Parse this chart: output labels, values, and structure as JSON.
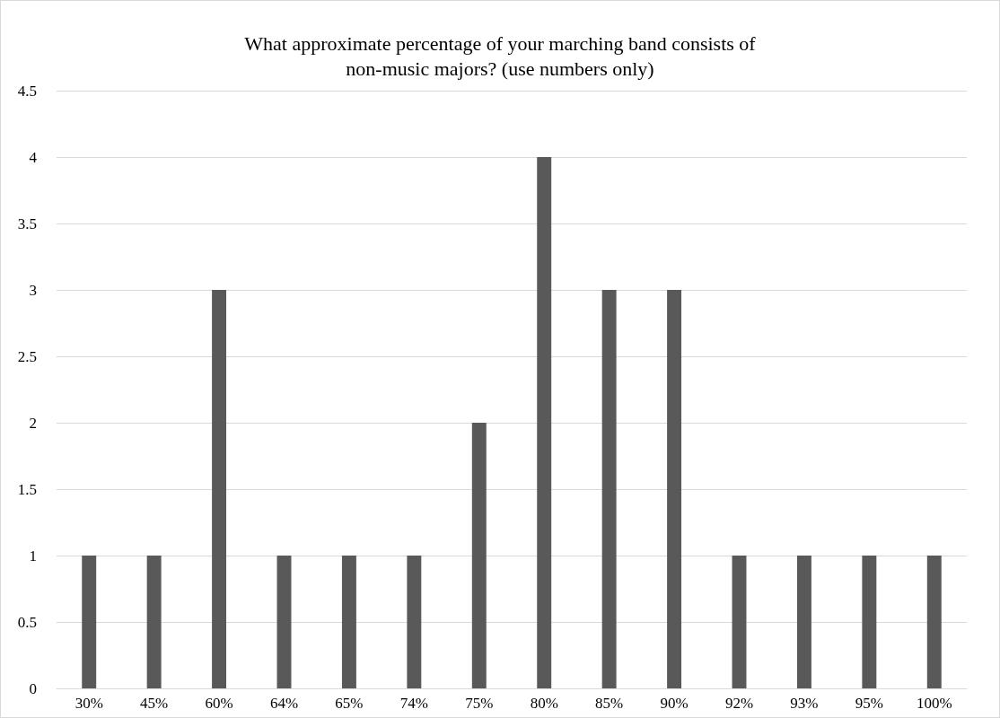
{
  "chart_data": {
    "type": "bar",
    "title": "What approximate percentage of your marching band consists of\nnon-music majors? (use numbers only)",
    "categories": [
      "30%",
      "45%",
      "60%",
      "64%",
      "65%",
      "74%",
      "75%",
      "80%",
      "85%",
      "90%",
      "92%",
      "93%",
      "95%",
      "100%"
    ],
    "values": [
      1,
      1,
      3,
      1,
      1,
      1,
      2,
      4,
      3,
      3,
      1,
      1,
      1,
      1
    ],
    "color": "#595959",
    "ylim": [
      0,
      4.5
    ],
    "yticks": [
      0,
      0.5,
      1,
      1.5,
      2,
      2.5,
      3,
      3.5,
      4,
      4.5
    ],
    "grid": "y"
  }
}
